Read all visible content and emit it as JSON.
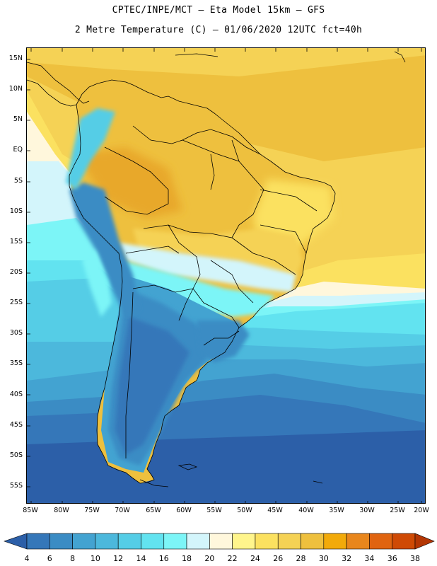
{
  "header": {
    "line1": "CPTEC/INPE/MCT –  Eta Model 15km – GFS",
    "line2": "2 Metre Temperature (C) – 01/06/2020 12UTC fct=40h"
  },
  "axes": {
    "lat_labels": [
      "15N",
      "10N",
      "5N",
      "EQ",
      "5S",
      "10S",
      "15S",
      "20S",
      "25S",
      "30S",
      "35S",
      "40S",
      "45S",
      "50S",
      "55S"
    ],
    "lon_labels": [
      "85W",
      "80W",
      "75W",
      "70W",
      "65W",
      "60W",
      "55W",
      "50W",
      "45W",
      "40W",
      "35W",
      "30W",
      "25W",
      "20W"
    ]
  },
  "colorbar": {
    "labels": [
      "4",
      "6",
      "8",
      "10",
      "12",
      "14",
      "16",
      "18",
      "20",
      "22",
      "24",
      "26",
      "28",
      "30",
      "32",
      "34",
      "36",
      "38"
    ],
    "colors": [
      "#2c5fa8",
      "#3577b9",
      "#3b8cc4",
      "#43a3d1",
      "#4cb8dc",
      "#55cde6",
      "#62e3f0",
      "#7cf5f7",
      "#d3f5fb",
      "#fff7dc",
      "#fff58c",
      "#fbe160",
      "#f5d255",
      "#eec03e",
      "#f2aa0a",
      "#e8861c",
      "#e06410",
      "#cf4a05",
      "#b43604"
    ]
  }
}
